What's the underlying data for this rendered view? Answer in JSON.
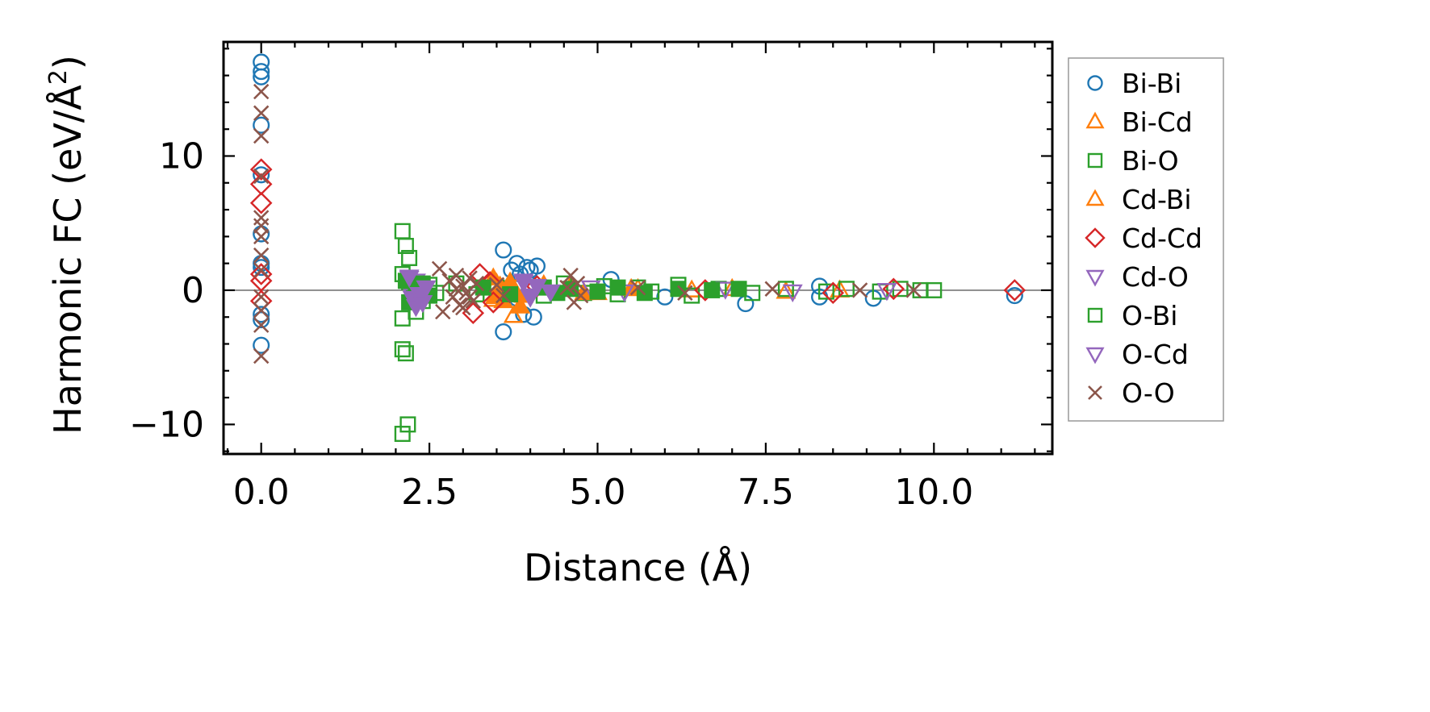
{
  "chart_data": {
    "type": "scatter",
    "title": "",
    "xlabel": "Distance (Å)",
    "ylabel": "Harmonic FC (eV/Å",
    "ylabel_superscript": "2",
    "ylabel_close": ")",
    "xlim": [
      -0.56,
      11.76
    ],
    "ylim": [
      -12.2,
      18.5
    ],
    "xticks": [
      0.0,
      2.5,
      5.0,
      7.5,
      10.0
    ],
    "xtick_labels": [
      "0.0",
      "2.5",
      "5.0",
      "7.5",
      "10.0"
    ],
    "yticks": [
      -10,
      0,
      10
    ],
    "ytick_labels": [
      "−10",
      "0",
      "10"
    ],
    "x_minor_step": 0.5,
    "y_minor_step": 2,
    "zero_line": true,
    "grid": false,
    "legend_position": "outside-right",
    "series": [
      {
        "name": "Bi-Bi",
        "marker": "circle",
        "filled": false,
        "color": "#1f77b4",
        "points": [
          [
            0.0,
            17.0
          ],
          [
            0.0,
            16.3
          ],
          [
            0.0,
            15.9
          ],
          [
            0.0,
            12.3
          ],
          [
            0.0,
            8.6
          ],
          [
            0.0,
            4.2
          ],
          [
            0.0,
            2.0
          ],
          [
            0.0,
            1.7
          ],
          [
            0.0,
            -1.8
          ],
          [
            0.0,
            -2.2
          ],
          [
            0.0,
            -4.1
          ],
          [
            3.6,
            3.0
          ],
          [
            3.6,
            -3.1
          ],
          [
            3.72,
            1.5
          ],
          [
            3.8,
            2.0
          ],
          [
            3.85,
            1.2
          ],
          [
            3.9,
            -1.8
          ],
          [
            3.95,
            1.7
          ],
          [
            4.0,
            1.5
          ],
          [
            4.05,
            -2.0
          ],
          [
            4.1,
            1.8
          ],
          [
            3.8,
            -0.6
          ],
          [
            4.0,
            0.4
          ],
          [
            5.2,
            0.8
          ],
          [
            6.0,
            -0.5
          ],
          [
            7.2,
            -1.0
          ],
          [
            8.3,
            0.3
          ],
          [
            8.3,
            -0.5
          ],
          [
            9.1,
            -0.6
          ],
          [
            11.2,
            -0.4
          ]
        ]
      },
      {
        "name": "Bi-Cd",
        "marker": "triangle-up",
        "filled": false,
        "color": "#ff7f0e",
        "points": [
          [
            3.45,
            -0.7
          ],
          [
            3.5,
            0.5
          ],
          [
            3.75,
            -1.9
          ],
          [
            3.8,
            0.2
          ],
          [
            3.9,
            -0.4
          ],
          [
            4.6,
            0.3
          ],
          [
            5.0,
            -0.2
          ],
          [
            5.6,
            0.1
          ],
          [
            6.4,
            0.0
          ],
          [
            7.0,
            0.1
          ],
          [
            7.8,
            -0.1
          ],
          [
            8.6,
            0.0
          ]
        ]
      },
      {
        "name": "Bi-O",
        "marker": "square",
        "filled": false,
        "color": "#2ca02c",
        "points": [
          [
            2.1,
            4.4
          ],
          [
            2.15,
            3.3
          ],
          [
            2.2,
            2.4
          ],
          [
            2.1,
            1.2
          ],
          [
            2.1,
            -2.1
          ],
          [
            2.1,
            -4.4
          ],
          [
            2.15,
            -4.7
          ],
          [
            2.1,
            -10.7
          ],
          [
            2.18,
            -10.0
          ],
          [
            2.2,
            0.6
          ],
          [
            2.25,
            -0.6
          ],
          [
            2.3,
            -1.6
          ],
          [
            2.4,
            -0.8
          ],
          [
            2.5,
            0.4
          ],
          [
            2.6,
            -0.2
          ],
          [
            2.9,
            0.5
          ],
          [
            3.2,
            -0.3
          ],
          [
            3.5,
            0.2
          ],
          [
            4.2,
            -0.4
          ],
          [
            4.5,
            0.5
          ],
          [
            4.8,
            -0.2
          ],
          [
            5.1,
            0.3
          ],
          [
            5.3,
            -0.3
          ],
          [
            5.6,
            0.2
          ],
          [
            5.8,
            -0.1
          ],
          [
            6.2,
            0.4
          ],
          [
            6.4,
            -0.4
          ],
          [
            6.8,
            0.1
          ],
          [
            7.3,
            -0.2
          ],
          [
            7.8,
            0.1
          ],
          [
            8.4,
            -0.1
          ],
          [
            8.7,
            0.1
          ],
          [
            9.2,
            -0.1
          ],
          [
            9.5,
            0.1
          ],
          [
            9.8,
            0.0
          ],
          [
            10.0,
            0.0
          ]
        ]
      },
      {
        "name": "Cd-Bi",
        "marker": "triangle-up",
        "filled": true,
        "color": "#ff7f0e",
        "points": [
          [
            3.45,
            0.9
          ],
          [
            3.5,
            -0.5
          ],
          [
            3.55,
            0.3
          ],
          [
            3.6,
            -0.8
          ],
          [
            3.7,
            0.6
          ],
          [
            3.8,
            -0.3
          ],
          [
            3.85,
            -1.2
          ],
          [
            4.2,
            0.4
          ],
          [
            4.8,
            -0.2
          ],
          [
            5.5,
            0.1
          ]
        ]
      },
      {
        "name": "Cd-Cd",
        "marker": "diamond",
        "filled": false,
        "color": "#d62728",
        "points": [
          [
            0.0,
            9.0
          ],
          [
            0.0,
            7.9
          ],
          [
            0.0,
            6.5
          ],
          [
            0.0,
            1.2
          ],
          [
            0.0,
            0.7
          ],
          [
            0.0,
            -0.8
          ],
          [
            3.15,
            -1.7
          ],
          [
            3.25,
            1.2
          ],
          [
            3.4,
            0.6
          ],
          [
            3.45,
            -0.9
          ],
          [
            4.1,
            0.3
          ],
          [
            6.6,
            0.0
          ],
          [
            8.5,
            -0.2
          ],
          [
            9.4,
            0.1
          ],
          [
            11.2,
            0.0
          ]
        ]
      },
      {
        "name": "Cd-O",
        "marker": "triangle-down",
        "filled": false,
        "color": "#9467bd",
        "points": [
          [
            2.2,
            0.9
          ],
          [
            2.25,
            -0.4
          ],
          [
            2.3,
            0.7
          ],
          [
            3.9,
            0.6
          ],
          [
            4.0,
            -0.5
          ],
          [
            4.9,
            0.2
          ],
          [
            5.4,
            -0.1
          ],
          [
            6.9,
            0.1
          ],
          [
            7.9,
            -0.1
          ],
          [
            9.3,
            0.0
          ]
        ]
      },
      {
        "name": "O-Bi",
        "marker": "square",
        "filled": true,
        "color": "#2ca02c",
        "points": [
          [
            2.15,
            0.7
          ],
          [
            2.2,
            -0.9
          ],
          [
            2.3,
            0.3
          ],
          [
            2.4,
            0.5
          ],
          [
            2.5,
            -0.4
          ],
          [
            3.3,
            0.2
          ],
          [
            3.7,
            -0.3
          ],
          [
            4.2,
            0.2
          ],
          [
            4.4,
            -0.2
          ],
          [
            4.6,
            0.1
          ],
          [
            5.0,
            -0.1
          ],
          [
            5.3,
            0.2
          ],
          [
            5.7,
            -0.2
          ],
          [
            6.2,
            0.1
          ],
          [
            6.7,
            0.0
          ],
          [
            7.1,
            0.1
          ]
        ]
      },
      {
        "name": "O-Cd",
        "marker": "triangle-down",
        "filled": true,
        "color": "#9467bd",
        "points": [
          [
            2.2,
            1.0
          ],
          [
            2.25,
            -0.6
          ],
          [
            2.3,
            -1.2
          ],
          [
            2.35,
            -0.3
          ],
          [
            2.4,
            -0.9
          ],
          [
            2.45,
            0.2
          ],
          [
            3.9,
            0.7
          ],
          [
            4.0,
            -0.4
          ],
          [
            4.1,
            0.3
          ],
          [
            4.3,
            -0.1
          ]
        ]
      },
      {
        "name": "O-O",
        "marker": "x",
        "filled": false,
        "color": "#8c564b",
        "points": [
          [
            0.0,
            14.8
          ],
          [
            0.0,
            13.2
          ],
          [
            0.0,
            11.5
          ],
          [
            0.0,
            8.5
          ],
          [
            0.0,
            5.4
          ],
          [
            0.0,
            4.8
          ],
          [
            0.0,
            4.0
          ],
          [
            0.0,
            2.6
          ],
          [
            0.0,
            1.5
          ],
          [
            0.0,
            -0.5
          ],
          [
            0.0,
            -1.5
          ],
          [
            0.0,
            -2.6
          ],
          [
            0.0,
            -4.9
          ],
          [
            2.65,
            1.6
          ],
          [
            2.7,
            -1.6
          ],
          [
            2.8,
            0.7
          ],
          [
            2.85,
            -0.5
          ],
          [
            2.9,
            1.1
          ],
          [
            2.95,
            -1.1
          ],
          [
            3.0,
            0.3
          ],
          [
            3.05,
            -0.2
          ],
          [
            3.1,
            0.9
          ],
          [
            3.15,
            -0.8
          ],
          [
            3.2,
            0.5
          ],
          [
            3.0,
            -1.3
          ],
          [
            2.9,
            0.1
          ],
          [
            3.1,
            -0.5
          ],
          [
            3.5,
            0.4
          ],
          [
            3.6,
            -0.4
          ],
          [
            4.6,
            1.1
          ],
          [
            4.65,
            -0.9
          ],
          [
            4.7,
            0.5
          ],
          [
            4.75,
            -0.4
          ],
          [
            4.55,
            0.2
          ],
          [
            5.6,
            0.2
          ],
          [
            6.3,
            -0.2
          ],
          [
            7.6,
            0.1
          ],
          [
            8.9,
            0.0
          ],
          [
            9.7,
            0.0
          ]
        ]
      }
    ]
  }
}
